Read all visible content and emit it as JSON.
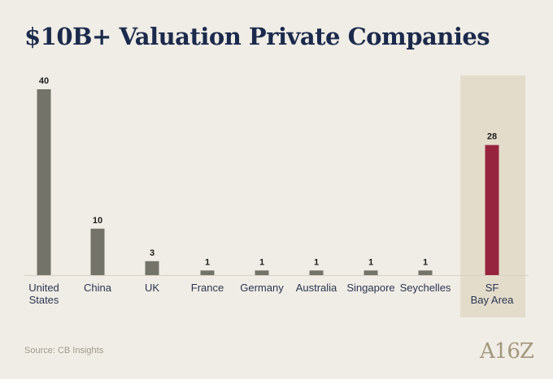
{
  "title": "$10B+ Valuation Private Companies",
  "source": "Source: CB Insights",
  "logo_text": "A16Z",
  "colors": {
    "background": "#f0ede6",
    "bar": "#74736a",
    "highlight_bar": "#97243f",
    "highlight_panel": "#e4dccb",
    "title": "#1b2a4c"
  },
  "chart_data": {
    "type": "bar",
    "categories": [
      [
        "United",
        "States"
      ],
      [
        "China"
      ],
      [
        "UK"
      ],
      [
        "France"
      ],
      [
        "Germany"
      ],
      [
        "Australia"
      ],
      [
        "Singapore"
      ],
      [
        "Seychelles"
      ],
      [
        "SF",
        "Bay Area"
      ]
    ],
    "values": [
      40,
      10,
      3,
      1,
      1,
      1,
      1,
      1,
      28
    ],
    "highlight_index": 8,
    "ylim": [
      0,
      40
    ],
    "grid": false,
    "legend": "none"
  }
}
